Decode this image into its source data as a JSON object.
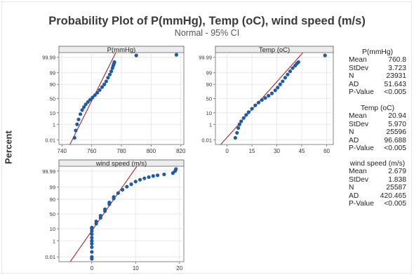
{
  "title": "Probability Plot of P(mmHg), Temp (oC), wind speed (m/s)",
  "subtitle": "Normal - 95% CI",
  "ylabel": "Percent",
  "colors": {
    "points": "#1f5aa6",
    "fit_line": "#b22222",
    "grid": "#e4e4e4",
    "axis": "#666666",
    "header_bg": "#ececec"
  },
  "chart_data": [
    {
      "type": "scatter",
      "title": "P(mmHg)",
      "scale": "normal-probability",
      "xlim": [
        738,
        822
      ],
      "xticks": [
        740,
        760,
        780,
        800,
        820
      ],
      "yticks": [
        0.01,
        1,
        10,
        50,
        90,
        99,
        99.99
      ],
      "fit": {
        "mean": 760.8,
        "stdev": 3.723
      },
      "points": [
        [
          748.5,
          0.02
        ],
        [
          749.3,
          0.2
        ],
        [
          750.2,
          1
        ],
        [
          751.2,
          3
        ],
        [
          752.4,
          8
        ],
        [
          753.6,
          15
        ],
        [
          754.8,
          22
        ],
        [
          756,
          30
        ],
        [
          757.5,
          38
        ],
        [
          759,
          46
        ],
        [
          760.6,
          54
        ],
        [
          762.2,
          62
        ],
        [
          763.8,
          70
        ],
        [
          765.4,
          78
        ],
        [
          767,
          85
        ],
        [
          768.5,
          90
        ],
        [
          769.8,
          94
        ],
        [
          771,
          97
        ],
        [
          772.2,
          98.5
        ],
        [
          773.2,
          99.3
        ],
        [
          774,
          99.7
        ],
        [
          774.5,
          99.85
        ],
        [
          775,
          99.92
        ],
        [
          775.3,
          99.95
        ],
        [
          790,
          99.995
        ],
        [
          817,
          99.996
        ]
      ]
    },
    {
      "type": "scatter",
      "title": "Temp (oC)",
      "scale": "normal-probability",
      "xlim": [
        -7,
        64
      ],
      "xticks": [
        0,
        15,
        30,
        45,
        60
      ],
      "yticks": [
        0.01,
        1,
        10,
        50,
        90,
        99,
        99.99
      ],
      "fit": {
        "mean": 20.94,
        "stdev": 5.97
      },
      "points": [
        [
          5,
          0.02
        ],
        [
          6,
          0.1
        ],
        [
          6.8,
          0.4
        ],
        [
          7.5,
          1
        ],
        [
          8.5,
          2
        ],
        [
          10,
          4
        ],
        [
          11.5,
          7
        ],
        [
          13,
          11
        ],
        [
          15,
          18
        ],
        [
          17,
          27
        ],
        [
          19,
          36
        ],
        [
          21,
          45
        ],
        [
          23,
          52
        ],
        [
          25,
          60
        ],
        [
          27,
          68
        ],
        [
          29,
          77
        ],
        [
          30.5,
          84
        ],
        [
          32,
          90
        ],
        [
          33.5,
          94
        ],
        [
          35,
          97
        ],
        [
          36.5,
          98.5
        ],
        [
          38,
          99.3
        ],
        [
          39.5,
          99.7
        ],
        [
          41,
          99.85
        ],
        [
          42,
          99.92
        ],
        [
          43,
          99.95
        ],
        [
          59,
          99.995
        ]
      ]
    },
    {
      "type": "scatter",
      "title": "wind speed (m/s)",
      "scale": "normal-probability",
      "xlim": [
        -7.5,
        21
      ],
      "xticks": [
        0,
        10,
        20
      ],
      "yticks": [
        0.01,
        1,
        10,
        50,
        90,
        99,
        99.99
      ],
      "fit": {
        "mean": 2.679,
        "stdev": 1.838
      },
      "points": [
        [
          0,
          0.005
        ],
        [
          0,
          0.01
        ],
        [
          0,
          0.05
        ],
        [
          0,
          0.2
        ],
        [
          0,
          0.5
        ],
        [
          0,
          1
        ],
        [
          0,
          2
        ],
        [
          0,
          4
        ],
        [
          0,
          7
        ],
        [
          0,
          10
        ],
        [
          0,
          12
        ],
        [
          1,
          20
        ],
        [
          1,
          26
        ],
        [
          2,
          37
        ],
        [
          2,
          44
        ],
        [
          3,
          60
        ],
        [
          3,
          66
        ],
        [
          4,
          80
        ],
        [
          4,
          84
        ],
        [
          5,
          91
        ],
        [
          5,
          93
        ],
        [
          6,
          96.5
        ],
        [
          7,
          98.2
        ],
        [
          8,
          99.1
        ],
        [
          9,
          99.5
        ],
        [
          10,
          99.75
        ],
        [
          11,
          99.85
        ],
        [
          12,
          99.9
        ],
        [
          13,
          99.93
        ],
        [
          14,
          99.95
        ],
        [
          15,
          99.96
        ],
        [
          16.5,
          99.97
        ],
        [
          18.5,
          99.98
        ],
        [
          19,
          99.99
        ],
        [
          19.2,
          99.995
        ]
      ]
    }
  ],
  "stats": [
    {
      "header": "P(mmHg)",
      "rows": [
        [
          "Mean",
          "760.8"
        ],
        [
          "StDev",
          "3.723"
        ],
        [
          "N",
          "23931"
        ],
        [
          "AD",
          "51.643"
        ],
        [
          "P-Value",
          "<0.005"
        ]
      ]
    },
    {
      "header": "Temp (oC)",
      "rows": [
        [
          "Mean",
          "20.94"
        ],
        [
          "StDev",
          "5.970"
        ],
        [
          "N",
          "25596"
        ],
        [
          "AD",
          "96.688"
        ],
        [
          "P-Value",
          "<0.005"
        ]
      ]
    },
    {
      "header": "wind speed (m/s)",
      "rows": [
        [
          "Mean",
          "2.679"
        ],
        [
          "StDev",
          "1.838"
        ],
        [
          "N",
          "25587"
        ],
        [
          "AD",
          "420.465"
        ],
        [
          "P-Value",
          "<0.005"
        ]
      ]
    }
  ]
}
